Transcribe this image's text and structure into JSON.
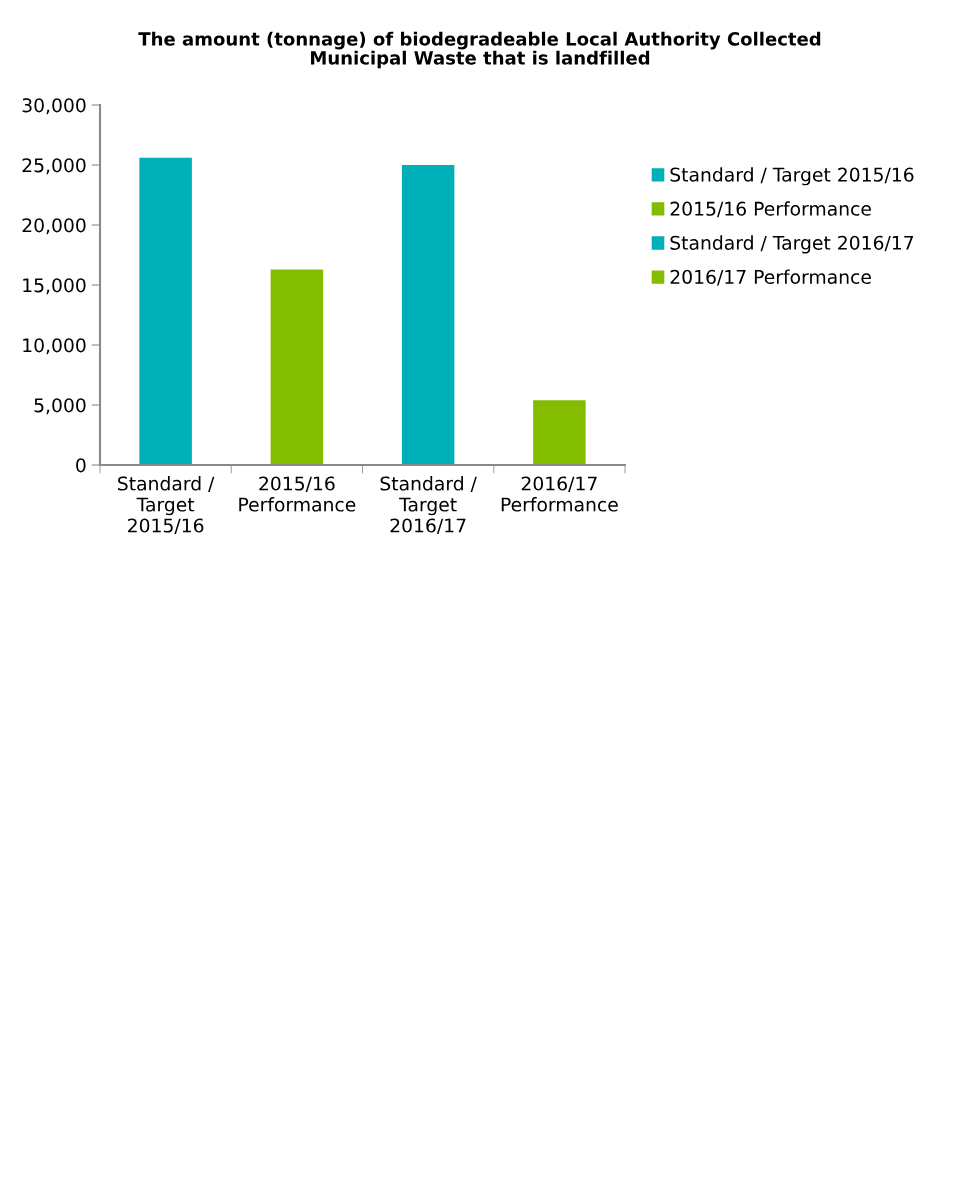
{
  "chart_data": {
    "type": "bar",
    "title": "The amount (tonnage) of biodegradeable Local Authority Collected\nMunicipal Waste that is landfilled",
    "categories": [
      "Standard /\nTarget\n2015/16",
      "2015/16\nPerformance",
      "Standard /\nTarget\n2016/17",
      "2016/17\nPerformance"
    ],
    "series": [
      {
        "name": "Standard / Target 2015/16",
        "color": "#00b0b9",
        "values": [
          25600,
          null,
          null,
          null
        ]
      },
      {
        "name": "2015/16 Performance",
        "color": "#84bd00",
        "values": [
          null,
          16300,
          null,
          null
        ]
      },
      {
        "name": "Standard / Target 2016/17",
        "color": "#00b0b9",
        "values": [
          null,
          null,
          25000,
          null
        ]
      },
      {
        "name": "2016/17 Performance",
        "color": "#84bd00",
        "values": [
          null,
          null,
          null,
          5400
        ]
      }
    ],
    "ylim": [
      0,
      30000
    ],
    "yticks": [
      {
        "value": 0,
        "label": "0"
      },
      {
        "value": 5000,
        "label": "5,000"
      },
      {
        "value": 10000,
        "label": "10,000"
      },
      {
        "value": 15000,
        "label": "15,000"
      },
      {
        "value": 20000,
        "label": "20,000"
      },
      {
        "value": 25000,
        "label": "25,000"
      },
      {
        "value": 30000,
        "label": "30,000"
      }
    ],
    "grid": false,
    "legend": "right"
  }
}
